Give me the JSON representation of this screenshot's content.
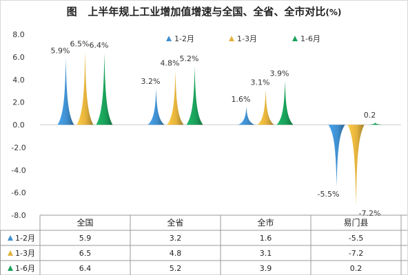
{
  "chart_data": {
    "type": "bar",
    "title": "图   上半年规上工业增加值增速与全国、全省、全市对比",
    "unit": "(%)",
    "categories": [
      "全国",
      "全省",
      "全市",
      "易门县"
    ],
    "series": [
      {
        "name": "1-2月",
        "values": [
          5.9,
          3.2,
          1.6,
          -5.5
        ],
        "color": "#3f8fcf"
      },
      {
        "name": "1-3月",
        "values": [
          6.5,
          4.8,
          3.1,
          -7.2
        ],
        "color": "#e3b23c"
      },
      {
        "name": "1-6月",
        "values": [
          6.4,
          5.2,
          3.9,
          0.2
        ],
        "color": "#1aa05a"
      }
    ],
    "bar_labels": [
      [
        "5.9%",
        "3.2%",
        "1.6%",
        "-5.5%"
      ],
      [
        "6.5%",
        "4.8%",
        "3.1%",
        "-7.2%"
      ],
      [
        "6.4%",
        "5.2%",
        "3.9%",
        "0.2"
      ]
    ],
    "table_values": [
      [
        "5.9",
        "3.2",
        "1.6",
        "-5.5"
      ],
      [
        "6.5",
        "4.8",
        "3.1",
        "-7.2"
      ],
      [
        "6.4",
        "5.2",
        "3.9",
        "0.2"
      ]
    ],
    "yticks": [
      "8.0",
      "6.0",
      "4.0",
      "2.0",
      "0.0",
      "-2.0",
      "-4.0",
      "-6.0",
      "-8.0"
    ],
    "ylim": [
      -8,
      8
    ],
    "grid": false,
    "legend_position": "top",
    "marker": "triangle"
  }
}
